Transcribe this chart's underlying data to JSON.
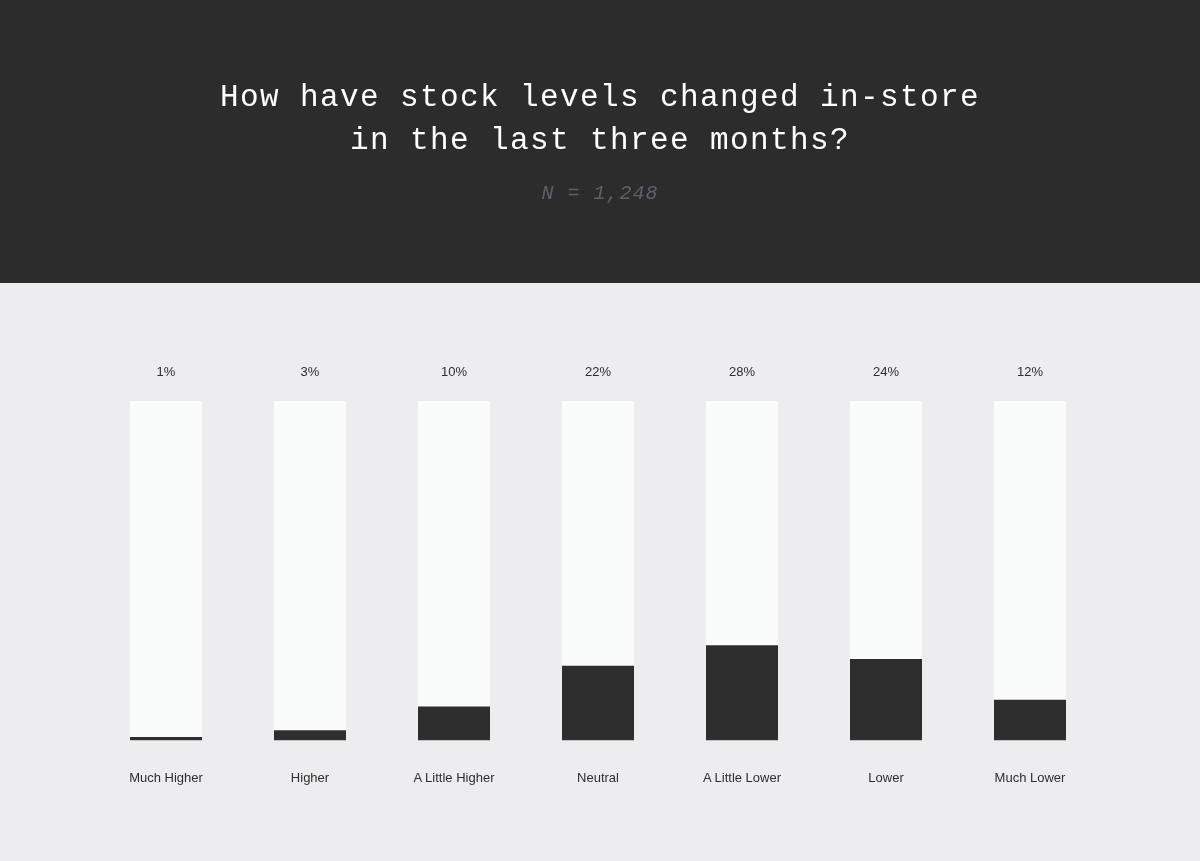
{
  "chart_data": {
    "type": "bar",
    "title": "How have stock levels changed in-store in the last three months?",
    "subtitle": "N = 1,248",
    "categories": [
      "Much Higher",
      "Higher",
      "A Little Higher",
      "Neutral",
      "A Little Lower",
      "Lower",
      "Much Lower"
    ],
    "values": [
      1,
      3,
      10,
      22,
      28,
      24,
      12
    ],
    "color": "#2e2e2e",
    "value_labels": [
      "1%",
      "3%",
      "10%",
      "22%",
      "28%",
      "24%",
      "12%"
    ],
    "ylim": [
      0,
      100
    ],
    "tick_labels": "x",
    "grid": false,
    "legend": false
  }
}
